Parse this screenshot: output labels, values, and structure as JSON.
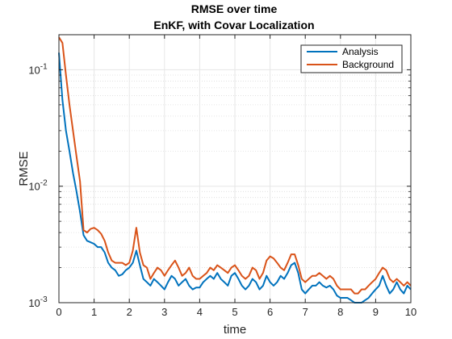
{
  "chart_data": {
    "type": "line",
    "title": "RMSE over time",
    "subtitle": "EnKF, with Covar Localization",
    "xlabel": "time",
    "ylabel": "RMSE",
    "xlim": [
      0,
      10
    ],
    "ylim": [
      0.001,
      0.2
    ],
    "yscale": "log",
    "xticks": [
      "0",
      "1",
      "2",
      "3",
      "4",
      "5",
      "6",
      "7",
      "8",
      "9",
      "10"
    ],
    "yticks": [
      {
        "base": "10",
        "exp": "-3"
      },
      {
        "base": "10",
        "exp": "-2"
      },
      {
        "base": "10",
        "exp": "-1"
      }
    ],
    "grid": true,
    "minor_grid": true,
    "legend_position": "top-right",
    "x": [
      0,
      0.1,
      0.2,
      0.3,
      0.4,
      0.5,
      0.6,
      0.7,
      0.8,
      0.9,
      1.0,
      1.1,
      1.2,
      1.3,
      1.4,
      1.5,
      1.6,
      1.7,
      1.8,
      1.9,
      2.0,
      2.1,
      2.2,
      2.3,
      2.4,
      2.5,
      2.6,
      2.7,
      2.8,
      2.9,
      3.0,
      3.1,
      3.2,
      3.3,
      3.4,
      3.5,
      3.6,
      3.7,
      3.8,
      3.9,
      4.0,
      4.1,
      4.2,
      4.3,
      4.4,
      4.5,
      4.6,
      4.7,
      4.8,
      4.9,
      5.0,
      5.1,
      5.2,
      5.3,
      5.4,
      5.5,
      5.6,
      5.7,
      5.8,
      5.9,
      6.0,
      6.1,
      6.2,
      6.3,
      6.4,
      6.5,
      6.6,
      6.7,
      6.8,
      6.9,
      7.0,
      7.1,
      7.2,
      7.3,
      7.4,
      7.5,
      7.6,
      7.7,
      7.8,
      7.9,
      8.0,
      8.1,
      8.2,
      8.3,
      8.4,
      8.5,
      8.6,
      8.7,
      8.8,
      8.9,
      9.0,
      9.1,
      9.2,
      9.3,
      9.4,
      9.5,
      9.6,
      9.7,
      9.8,
      9.9,
      10.0
    ],
    "series": [
      {
        "name": "Analysis",
        "color": "#0072BD",
        "values": [
          0.14,
          0.055,
          0.03,
          0.02,
          0.013,
          0.009,
          0.006,
          0.0038,
          0.0034,
          0.0033,
          0.0032,
          0.003,
          0.003,
          0.0027,
          0.0022,
          0.002,
          0.0019,
          0.0017,
          0.00175,
          0.0019,
          0.002,
          0.0022,
          0.0028,
          0.0021,
          0.0016,
          0.0015,
          0.0014,
          0.0016,
          0.0015,
          0.0014,
          0.0013,
          0.0015,
          0.0017,
          0.0016,
          0.0014,
          0.0015,
          0.0016,
          0.0014,
          0.0013,
          0.00135,
          0.00135,
          0.0015,
          0.0016,
          0.0017,
          0.0016,
          0.0018,
          0.0016,
          0.0015,
          0.0014,
          0.0017,
          0.0018,
          0.0016,
          0.0014,
          0.0013,
          0.0014,
          0.0016,
          0.0015,
          0.0013,
          0.0014,
          0.0017,
          0.0015,
          0.0014,
          0.0015,
          0.0017,
          0.0016,
          0.0018,
          0.0021,
          0.0022,
          0.0018,
          0.0013,
          0.0012,
          0.0013,
          0.0014,
          0.0014,
          0.0015,
          0.0014,
          0.00135,
          0.0014,
          0.0013,
          0.00115,
          0.0011,
          0.0011,
          0.0011,
          0.00105,
          0.001,
          0.001,
          0.001,
          0.00105,
          0.0011,
          0.0012,
          0.0013,
          0.0014,
          0.0017,
          0.0014,
          0.0012,
          0.0013,
          0.0015,
          0.0013,
          0.0012,
          0.0014,
          0.0013
        ]
      },
      {
        "name": "Background",
        "color": "#D95319",
        "values": [
          0.19,
          0.17,
          0.09,
          0.05,
          0.03,
          0.018,
          0.011,
          0.0042,
          0.004,
          0.0043,
          0.0044,
          0.0042,
          0.0039,
          0.0034,
          0.0027,
          0.0023,
          0.0022,
          0.0022,
          0.0022,
          0.0021,
          0.0022,
          0.0028,
          0.0044,
          0.0027,
          0.0021,
          0.002,
          0.0016,
          0.0018,
          0.002,
          0.0019,
          0.0017,
          0.0019,
          0.0021,
          0.0023,
          0.002,
          0.0017,
          0.0018,
          0.002,
          0.0017,
          0.0016,
          0.0016,
          0.0017,
          0.0018,
          0.002,
          0.0019,
          0.0021,
          0.002,
          0.0019,
          0.0018,
          0.002,
          0.0021,
          0.0019,
          0.0017,
          0.0016,
          0.0017,
          0.002,
          0.0019,
          0.0016,
          0.0018,
          0.0023,
          0.0025,
          0.0024,
          0.0022,
          0.002,
          0.0019,
          0.0022,
          0.0026,
          0.0026,
          0.0021,
          0.0016,
          0.0015,
          0.0016,
          0.0017,
          0.0017,
          0.0018,
          0.0017,
          0.0016,
          0.0017,
          0.0016,
          0.0014,
          0.0013,
          0.0013,
          0.0013,
          0.0013,
          0.0012,
          0.0012,
          0.0013,
          0.0013,
          0.0014,
          0.0015,
          0.0016,
          0.0018,
          0.002,
          0.0019,
          0.0016,
          0.0015,
          0.0016,
          0.0015,
          0.0014,
          0.0015,
          0.0014
        ]
      }
    ]
  }
}
